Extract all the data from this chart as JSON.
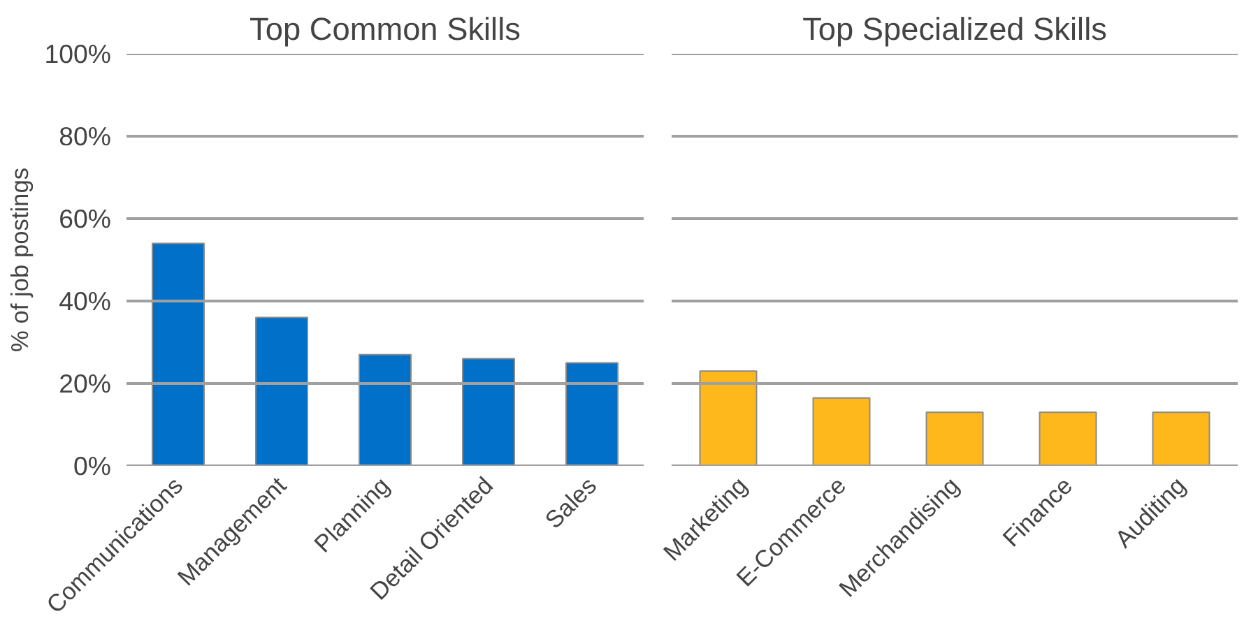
{
  "chart_data": [
    {
      "type": "bar",
      "title": "Top Common Skills",
      "ylabel": "% of job postings",
      "categories": [
        "Communications",
        "Management",
        "Planning",
        "Detail Oriented",
        "Sales"
      ],
      "series": [
        {
          "color": "#0070c8",
          "values": [
            54,
            36,
            27,
            26,
            25
          ]
        }
      ],
      "ylim": [
        0,
        100
      ],
      "yticks": [
        {
          "value": 0,
          "label": "0%"
        },
        {
          "value": 20,
          "label": "20%"
        },
        {
          "value": 40,
          "label": "40%"
        },
        {
          "value": 60,
          "label": "60%"
        },
        {
          "value": 80,
          "label": "80%"
        },
        {
          "value": 100,
          "label": "100%"
        }
      ],
      "grid": "y"
    },
    {
      "type": "bar",
      "title": "Top Specialized Skills",
      "categories": [
        "Marketing",
        "E-Commerce",
        "Merchandising",
        "Finance",
        "Auditing"
      ],
      "series": [
        {
          "color": "#ffb81c",
          "values": [
            23,
            16.5,
            13,
            13,
            13
          ]
        }
      ],
      "ylim": [
        0,
        100
      ],
      "yticks": [
        0,
        20,
        40,
        60,
        80,
        100
      ],
      "grid": "y",
      "tick_labels": "x"
    }
  ]
}
